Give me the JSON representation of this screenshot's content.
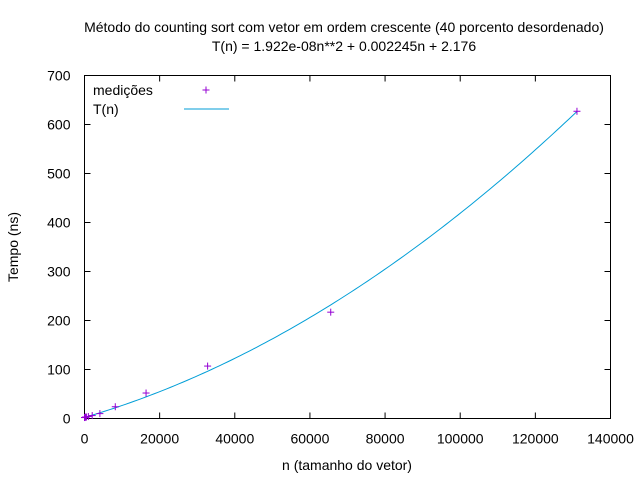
{
  "chart_data": {
    "type": "scatter",
    "title": "Método do counting sort com vetor em ordem crescente (40 porcento desordenado)",
    "subtitle": "T(n) = 1.922e-08n**2 + 0.002245n + 2.176",
    "xlabel": "n (tamanho do vetor)",
    "ylabel": "Tempo (ns)",
    "xlim": [
      0,
      140000
    ],
    "ylim": [
      0,
      700
    ],
    "x_ticks": [
      0,
      20000,
      40000,
      60000,
      80000,
      100000,
      120000,
      140000
    ],
    "y_ticks": [
      0,
      100,
      200,
      300,
      400,
      500,
      600,
      700
    ],
    "grid": false,
    "legend_position": "top-left",
    "series": [
      {
        "name": "medições",
        "kind": "points",
        "marker": "plus",
        "color": "#9400d3",
        "x": [
          16,
          32,
          64,
          128,
          256,
          512,
          1024,
          2048,
          4096,
          8192,
          16384,
          32768,
          65536,
          131072
        ],
        "y": [
          2,
          2,
          2,
          2,
          3,
          3,
          4,
          6,
          10,
          24,
          52,
          107,
          217,
          627
        ]
      },
      {
        "name": "T(n)",
        "kind": "fit-line",
        "color": "#009ed7",
        "coefficients": {
          "a": 1.922e-08,
          "b": 0.002245,
          "c": 2.176
        },
        "x_range": [
          0,
          131072
        ]
      }
    ]
  }
}
